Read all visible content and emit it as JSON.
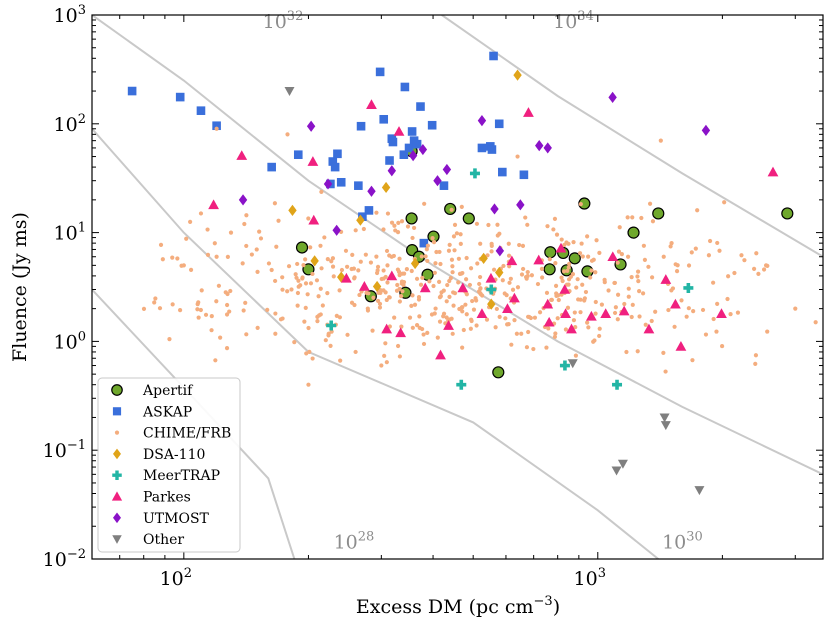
{
  "chart_data": {
    "type": "scatter",
    "x_scale": "log",
    "y_scale": "log",
    "xlabel": "Excess DM (pc cm",
    "xlabel_sup": "−3",
    "xlabel_tail": ")",
    "ylabel": "Fluence (Jy ms)",
    "xlim": [
      60,
      3500
    ],
    "ylim": [
      0.01,
      1000
    ],
    "x_ticks": [
      {
        "base": "10",
        "exp": "2",
        "value": 100
      },
      {
        "base": "10",
        "exp": "3",
        "value": 1000
      }
    ],
    "y_ticks": [
      {
        "base": "10",
        "exp": "−2",
        "value": 0.01
      },
      {
        "base": "10",
        "exp": "−1",
        "value": 0.1
      },
      {
        "base": "10",
        "exp": "0",
        "value": 1
      },
      {
        "base": "10",
        "exp": "1",
        "value": 10
      },
      {
        "base": "10",
        "exp": "2",
        "value": 100
      },
      {
        "base": "10",
        "exp": "3",
        "value": 1000
      }
    ],
    "legend_position": "lower-left",
    "reference_lines": [
      {
        "base": "10",
        "exp": "28",
        "points": [
          [
            60,
            3.0
          ],
          [
            104,
            0.32
          ],
          [
            160,
            0.055
          ],
          [
            185,
            0.01
          ]
        ],
        "label_at": [
          230,
          0.0125
        ]
      },
      {
        "base": "10",
        "exp": "30",
        "points": [
          [
            60,
            90
          ],
          [
            100,
            10
          ],
          [
            200,
            0.8
          ],
          [
            500,
            0.18
          ],
          [
            1000,
            0.028
          ],
          [
            1400,
            0.01
          ]
        ],
        "label_at": [
          1430,
          0.0125
        ]
      },
      {
        "base": "10",
        "exp": "32",
        "points": [
          [
            60,
            1000
          ],
          [
            100,
            250
          ],
          [
            200,
            30
          ],
          [
            400,
            5
          ],
          [
            800,
            1
          ],
          [
            1600,
            0.25
          ],
          [
            3500,
            0.06
          ]
        ],
        "label_at": [
          155,
          760
        ]
      },
      {
        "base": "10",
        "exp": "34",
        "points": [
          [
            420,
            1000
          ],
          [
            800,
            180
          ],
          [
            1600,
            35
          ],
          [
            3500,
            6
          ]
        ],
        "label_at": [
          780,
          760
        ]
      }
    ],
    "series": [
      {
        "name": "Apertif",
        "marker": "circle",
        "color": "#6fa82c",
        "edge": "#000000",
        "points": [
          [
            193,
            7.3
          ],
          [
            200,
            4.6
          ],
          [
            283,
            2.6
          ],
          [
            343,
            2.8
          ],
          [
            355,
            56
          ],
          [
            355,
            13.5
          ],
          [
            356,
            6.9
          ],
          [
            370,
            6.0
          ],
          [
            388,
            4.1
          ],
          [
            401,
            9.2
          ],
          [
            440,
            16.5
          ],
          [
            488,
            13.5
          ],
          [
            575,
            0.52
          ],
          [
            765,
            4.6
          ],
          [
            768,
            6.6
          ],
          [
            825,
            6.5
          ],
          [
            841,
            4.5
          ],
          [
            880,
            5.8
          ],
          [
            928,
            18.5
          ],
          [
            944,
            4.4
          ],
          [
            1135,
            5.1
          ],
          [
            1220,
            10
          ],
          [
            1400,
            15
          ],
          [
            2870,
            15
          ]
        ]
      },
      {
        "name": "ASKAP",
        "marker": "square",
        "color": "#3a6fdb",
        "points": [
          [
            75,
            200
          ],
          [
            98,
            176
          ],
          [
            110,
            132
          ],
          [
            120,
            96
          ],
          [
            163,
            40
          ],
          [
            189,
            52
          ],
          [
            226,
            28
          ],
          [
            229,
            45
          ],
          [
            232,
            40
          ],
          [
            235,
            53
          ],
          [
            240,
            29
          ],
          [
            264,
            27
          ],
          [
            268,
            95
          ],
          [
            270,
            14
          ],
          [
            280,
            16
          ],
          [
            298,
            300
          ],
          [
            304,
            110
          ],
          [
            314,
            46
          ],
          [
            318,
            73
          ],
          [
            320,
            68
          ],
          [
            340,
            52
          ],
          [
            342,
            218
          ],
          [
            350,
            60
          ],
          [
            356,
            85
          ],
          [
            360,
            70
          ],
          [
            366,
            65
          ],
          [
            373,
            144
          ],
          [
            380,
            8.0
          ],
          [
            398,
            97
          ],
          [
            425,
            27
          ],
          [
            525,
            60
          ],
          [
            550,
            62
          ],
          [
            555,
            58
          ],
          [
            560,
            420
          ],
          [
            578,
            100
          ],
          [
            588,
            36
          ],
          [
            663,
            34
          ]
        ]
      },
      {
        "name": "CHIME/FRB",
        "marker": "small-dot",
        "color": "#f4ad7e",
        "seed": 1337,
        "count": 560,
        "x_log_range": [
          1.88,
          3.48
        ],
        "y_log_range": [
          -0.45,
          1.45
        ],
        "center": [
          2.55,
          0.55
        ],
        "points": [
          [
            100,
            5.0
          ],
          [
            110,
            15
          ],
          [
            120,
            90
          ],
          [
            120,
            6.0
          ],
          [
            108,
            2.2
          ],
          [
            130,
            10
          ],
          [
            140,
            12
          ],
          [
            150,
            7.0
          ],
          [
            178,
            80
          ],
          [
            182,
            3.0
          ],
          [
            200,
            0.4
          ],
          [
            260,
            0.8
          ],
          [
            300,
            0.6
          ],
          [
            640,
            50
          ],
          [
            1420,
            70
          ],
          [
            2020,
            19
          ],
          [
            2550,
            5.0
          ],
          [
            3000,
            2.0
          ],
          [
            3360,
            1.5
          ]
        ]
      },
      {
        "name": "DSA-110",
        "marker": "diamond",
        "color": "#e0a419",
        "points": [
          [
            183,
            16
          ],
          [
            207,
            5.5
          ],
          [
            240,
            3.9
          ],
          [
            267,
            13
          ],
          [
            293,
            3.2
          ],
          [
            308,
            26
          ],
          [
            362,
            5.2
          ],
          [
            530,
            5.8
          ],
          [
            553,
            2.2
          ],
          [
            578,
            4.3
          ],
          [
            640,
            280
          ]
        ]
      },
      {
        "name": "MeerTRAP",
        "marker": "plus",
        "color": "#22b5a5",
        "points": [
          [
            227,
            1.4
          ],
          [
            468,
            0.4
          ],
          [
            505,
            35
          ],
          [
            553,
            3.0
          ],
          [
            833,
            0.6
          ],
          [
            1113,
            0.4
          ],
          [
            1655,
            3.1
          ]
        ]
      },
      {
        "name": "Parkes",
        "marker": "triangle-up",
        "color": "#f0207f",
        "points": [
          [
            118,
            18
          ],
          [
            138,
            51
          ],
          [
            205,
            45
          ],
          [
            206,
            13
          ],
          [
            247,
            3.8
          ],
          [
            273,
            3.2
          ],
          [
            284,
            150
          ],
          [
            309,
            1.3
          ],
          [
            318,
            4.0
          ],
          [
            331,
            85
          ],
          [
            334,
            1.2
          ],
          [
            383,
            3.1
          ],
          [
            417,
            0.75
          ],
          [
            436,
            1.4
          ],
          [
            472,
            3.1
          ],
          [
            525,
            1.8
          ],
          [
            552,
            3.8
          ],
          [
            605,
            2.0
          ],
          [
            620,
            5.5
          ],
          [
            629,
            2.5
          ],
          [
            680,
            127
          ],
          [
            720,
            5.6
          ],
          [
            757,
            2.2
          ],
          [
            763,
            1.5
          ],
          [
            815,
            7.2
          ],
          [
            832,
            3.0
          ],
          [
            836,
            1.8
          ],
          [
            864,
            1.3
          ],
          [
            965,
            1.7
          ],
          [
            1045,
            1.8
          ],
          [
            1087,
            6.0
          ],
          [
            1158,
            1.9
          ],
          [
            1329,
            1.3
          ],
          [
            1460,
            3.7
          ],
          [
            1540,
            2.2
          ],
          [
            1588,
            0.9
          ],
          [
            1990,
            1.8
          ],
          [
            2650,
            36
          ]
        ]
      },
      {
        "name": "UTMOST",
        "marker": "diamond",
        "color": "#8a12c8",
        "points": [
          [
            139,
            20
          ],
          [
            203,
            95
          ],
          [
            223,
            28
          ],
          [
            234,
            10.5
          ],
          [
            284,
            24
          ],
          [
            318,
            37
          ],
          [
            358,
            51
          ],
          [
            378,
            58
          ],
          [
            410,
            30
          ],
          [
            432,
            38
          ],
          [
            525,
            107
          ],
          [
            563,
            16.5
          ],
          [
            580,
            6.8
          ],
          [
            650,
            18
          ],
          [
            722,
            63
          ],
          [
            757,
            60
          ],
          [
            1086,
            175
          ],
          [
            1825,
            87
          ]
        ]
      },
      {
        "name": "Other",
        "marker": "triangle-down",
        "color": "#7f7f7f",
        "points": [
          [
            180,
            200
          ],
          [
            870,
            0.63
          ],
          [
            1110,
            0.065
          ],
          [
            1150,
            0.075
          ],
          [
            1450,
            0.2
          ],
          [
            1460,
            0.17
          ],
          [
            1760,
            0.043
          ]
        ]
      }
    ]
  }
}
